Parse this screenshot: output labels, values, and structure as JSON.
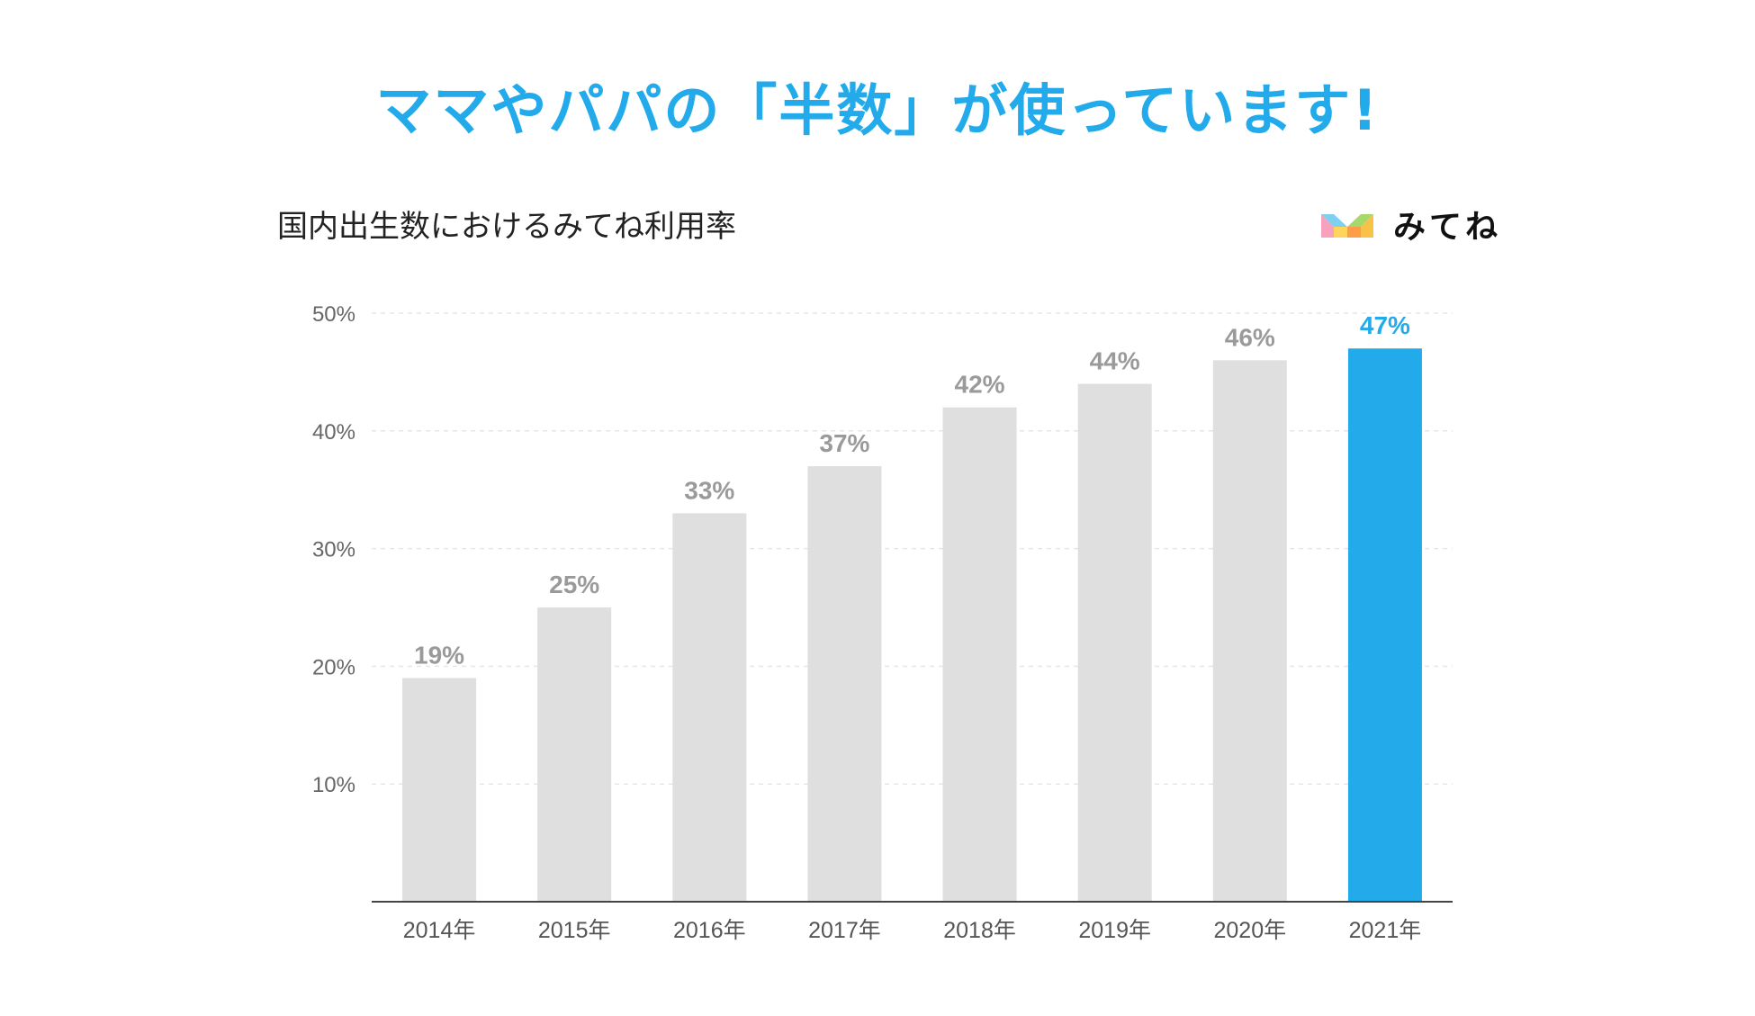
{
  "header": {
    "headline": "ママやパパの「半数」が使っています!"
  },
  "chart_header": {
    "subtitle": "国内出生数におけるみてね利用率"
  },
  "brand": {
    "name": "みてね",
    "logo_icon": "mitene-logo-icon"
  },
  "colors": {
    "accent": "#22aaeb",
    "bar_default": "#dfdfdf",
    "value_default": "#9a9a9a",
    "axis": "#444444",
    "grid": "#e6e6e6"
  },
  "chart_data": {
    "type": "bar",
    "title": "国内出生数におけるみてね利用率",
    "categories": [
      "2014年",
      "2015年",
      "2016年",
      "2017年",
      "2018年",
      "2019年",
      "2020年",
      "2021年"
    ],
    "values": [
      19,
      25,
      33,
      37,
      42,
      44,
      46,
      47
    ],
    "value_labels": [
      "19%",
      "25%",
      "33%",
      "37%",
      "42%",
      "44%",
      "46%",
      "47%"
    ],
    "highlight_index": 7,
    "ylim": [
      0,
      50
    ],
    "yticks": [
      10,
      20,
      30,
      40,
      50
    ],
    "ytick_labels": [
      "10%",
      "20%",
      "30%",
      "40%",
      "50%"
    ],
    "xlabel": "",
    "ylabel": "",
    "grid": true
  }
}
